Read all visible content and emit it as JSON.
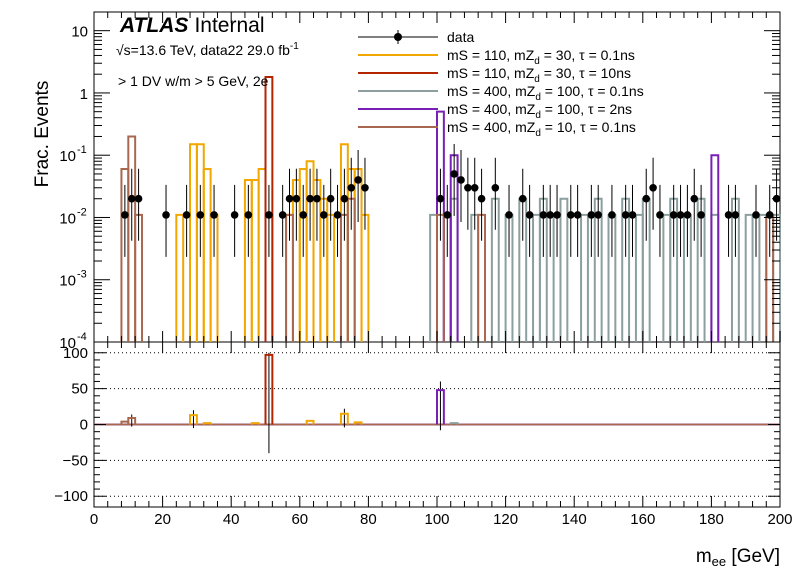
{
  "chart_data": {
    "type": "histogram",
    "experiment": "ATLAS",
    "status": "Internal",
    "sqrt_s": "√s=13.6 TeV, data22 29.0 fb",
    "lumi_exp": "-1",
    "selection": "> 1 DV w/m > 5 GeV, 2e",
    "ylabel": "Frac. Events",
    "xlabel_main": "m",
    "xlabel_sub": "ee",
    "xlabel_unit": " [GeV]",
    "x_range": [
      0,
      200
    ],
    "y_log_range": [
      -4,
      1.3
    ],
    "ratio_range": [
      -115,
      115
    ],
    "x_ticks": [
      "0",
      "20",
      "40",
      "60",
      "80",
      "100",
      "120",
      "140",
      "160",
      "180",
      "200"
    ],
    "y_ticks": [
      {
        "v": 10,
        "label": "10"
      },
      {
        "v": 1,
        "label": "1"
      },
      {
        "v": 0.1,
        "label": "10",
        "exp": "-1"
      },
      {
        "v": 0.01,
        "label": "10",
        "exp": "-2"
      },
      {
        "v": 0.001,
        "label": "10",
        "exp": "-3"
      },
      {
        "v": 0.0001,
        "label": "10",
        "exp": "-4"
      }
    ],
    "ratio_ticks": [
      "100",
      "50",
      "0",
      "−50",
      "−100"
    ],
    "legend": [
      {
        "key": "data",
        "text": "data",
        "sub": "",
        "text2": "",
        "color": "#000000",
        "marker": true
      },
      {
        "key": "s1",
        "text": "mS = 110, mZ",
        "sub": "d",
        "text2": " = 30, τ = 0.1ns",
        "color": "#f2a600"
      },
      {
        "key": "s2",
        "text": "mS = 110, mZ",
        "sub": "d",
        "text2": " = 30, τ = 10ns",
        "color": "#b32400"
      },
      {
        "key": "s3",
        "text": "mS = 400, mZ",
        "sub": "d",
        "text2": " = 100, τ = 0.1ns",
        "color": "#8c9e9e"
      },
      {
        "key": "s4",
        "text": "mS = 400, mZ",
        "sub": "d",
        "text2": " = 100, τ = 2ns",
        "color": "#7a1fb5"
      },
      {
        "key": "s5",
        "text": "mS = 400, mZ",
        "sub": "d",
        "text2": " = 10, τ = 0.1ns",
        "color": "#a8684f"
      }
    ],
    "data_points": [
      {
        "x": 9,
        "y": 0.011
      },
      {
        "x": 11,
        "y": 0.02
      },
      {
        "x": 13,
        "y": 0.02
      },
      {
        "x": 21,
        "y": 0.011
      },
      {
        "x": 27,
        "y": 0.011
      },
      {
        "x": 31,
        "y": 0.011
      },
      {
        "x": 35,
        "y": 0.011
      },
      {
        "x": 41,
        "y": 0.011
      },
      {
        "x": 45,
        "y": 0.011
      },
      {
        "x": 51,
        "y": 0.011
      },
      {
        "x": 55,
        "y": 0.011
      },
      {
        "x": 57,
        "y": 0.02
      },
      {
        "x": 59,
        "y": 0.02
      },
      {
        "x": 61,
        "y": 0.011
      },
      {
        "x": 63,
        "y": 0.02
      },
      {
        "x": 65,
        "y": 0.02
      },
      {
        "x": 67,
        "y": 0.011
      },
      {
        "x": 69,
        "y": 0.02
      },
      {
        "x": 71,
        "y": 0.011
      },
      {
        "x": 73,
        "y": 0.02
      },
      {
        "x": 75,
        "y": 0.03
      },
      {
        "x": 77,
        "y": 0.04
      },
      {
        "x": 79,
        "y": 0.03
      },
      {
        "x": 101,
        "y": 0.02
      },
      {
        "x": 103,
        "y": 0.011
      },
      {
        "x": 105,
        "y": 0.05
      },
      {
        "x": 107,
        "y": 0.04
      },
      {
        "x": 109,
        "y": 0.03
      },
      {
        "x": 111,
        "y": 0.03
      },
      {
        "x": 113,
        "y": 0.02
      },
      {
        "x": 117,
        "y": 0.03
      },
      {
        "x": 121,
        "y": 0.011
      },
      {
        "x": 125,
        "y": 0.02
      },
      {
        "x": 127,
        "y": 0.011
      },
      {
        "x": 131,
        "y": 0.011
      },
      {
        "x": 133,
        "y": 0.011
      },
      {
        "x": 135,
        "y": 0.011
      },
      {
        "x": 139,
        "y": 0.011
      },
      {
        "x": 141,
        "y": 0.011
      },
      {
        "x": 145,
        "y": 0.011
      },
      {
        "x": 147,
        "y": 0.011
      },
      {
        "x": 151,
        "y": 0.011
      },
      {
        "x": 155,
        "y": 0.011
      },
      {
        "x": 157,
        "y": 0.011
      },
      {
        "x": 161,
        "y": 0.02
      },
      {
        "x": 163,
        "y": 0.03
      },
      {
        "x": 165,
        "y": 0.011
      },
      {
        "x": 169,
        "y": 0.011
      },
      {
        "x": 171,
        "y": 0.011
      },
      {
        "x": 173,
        "y": 0.011
      },
      {
        "x": 175,
        "y": 0.02
      },
      {
        "x": 177,
        "y": 0.011
      },
      {
        "x": 185,
        "y": 0.011
      },
      {
        "x": 187,
        "y": 0.011
      },
      {
        "x": 193,
        "y": 0.011
      },
      {
        "x": 197,
        "y": 0.011
      },
      {
        "x": 199,
        "y": 0.02
      }
    ],
    "signals": [
      {
        "key": "s1",
        "color": "#f2a600",
        "bins": [
          [
            24,
            26,
            0.011
          ],
          [
            28,
            30,
            0.15
          ],
          [
            30,
            32,
            0.15
          ],
          [
            32,
            34,
            0.06
          ],
          [
            34,
            36,
            0.011
          ],
          [
            44,
            46,
            0.04
          ],
          [
            46,
            48,
            0.04
          ],
          [
            48,
            50,
            0.06
          ],
          [
            50,
            52,
            0.011
          ],
          [
            56,
            58,
            0.011
          ],
          [
            58,
            60,
            0.04
          ],
          [
            60,
            62,
            0.06
          ],
          [
            62,
            64,
            0.08
          ],
          [
            64,
            66,
            0.04
          ],
          [
            66,
            68,
            0.02
          ],
          [
            68,
            70,
            0.011
          ],
          [
            72,
            74,
            0.15
          ],
          [
            74,
            76,
            0.06
          ],
          [
            76,
            78,
            0.06
          ],
          [
            78,
            80,
            0.011
          ]
        ]
      },
      {
        "key": "s2",
        "color": "#b32400",
        "bins": [
          [
            50,
            52,
            1.8
          ]
        ]
      },
      {
        "key": "s3",
        "color": "#8c9e9e",
        "bins": [
          [
            98,
            100,
            0.011
          ],
          [
            104,
            106,
            0.02
          ],
          [
            110,
            112,
            0.011
          ],
          [
            116,
            118,
            0.02
          ],
          [
            120,
            122,
            0.011
          ],
          [
            124,
            126,
            0.02
          ],
          [
            128,
            130,
            0.011
          ],
          [
            130,
            132,
            0.02
          ],
          [
            134,
            136,
            0.011
          ],
          [
            136,
            138,
            0.02
          ],
          [
            142,
            144,
            0.011
          ],
          [
            146,
            148,
            0.02
          ],
          [
            150,
            152,
            0.011
          ],
          [
            154,
            156,
            0.02
          ],
          [
            158,
            160,
            0.011
          ],
          [
            160,
            162,
            0.02
          ],
          [
            166,
            168,
            0.011
          ],
          [
            168,
            170,
            0.02
          ],
          [
            172,
            174,
            0.011
          ],
          [
            176,
            178,
            0.02
          ],
          [
            180,
            182,
            0.011
          ],
          [
            186,
            188,
            0.02
          ],
          [
            190,
            192,
            0.011
          ],
          [
            194,
            196,
            0.011
          ],
          [
            198,
            200,
            0.011
          ]
        ]
      },
      {
        "key": "s4",
        "color": "#7a1fb5",
        "bins": [
          [
            100,
            102,
            0.5
          ],
          [
            102,
            104,
            0.011
          ],
          [
            104,
            106,
            0.1
          ],
          [
            180,
            182,
            0.1
          ]
        ]
      },
      {
        "key": "s5",
        "color": "#a8684f",
        "bins": [
          [
            8,
            10,
            0.06
          ],
          [
            10,
            12,
            0.2
          ],
          [
            12,
            14,
            0.011
          ],
          [
            56,
            58,
            0.011
          ],
          [
            72,
            74,
            0.011
          ],
          [
            74,
            76,
            0.02
          ],
          [
            100,
            102,
            0.011
          ],
          [
            112,
            114,
            0.011
          ],
          [
            196,
            198,
            0.011
          ]
        ]
      }
    ],
    "ratio_spikes": [
      {
        "key": "s2",
        "x": 51,
        "y": 97
      },
      {
        "key": "s4",
        "x": 101,
        "y": 48
      },
      {
        "key": "s1",
        "x": 29,
        "y": 13
      },
      {
        "key": "s1",
        "x": 73,
        "y": 15
      },
      {
        "key": "s1",
        "x": 63,
        "y": 5
      },
      {
        "key": "s5",
        "x": 11,
        "y": 9
      },
      {
        "key": "s5",
        "x": 9,
        "y": 4
      },
      {
        "key": "s1",
        "x": 47,
        "y": 2
      },
      {
        "key": "s3",
        "x": 105,
        "y": 2
      },
      {
        "key": "s1",
        "x": 33,
        "y": 2
      },
      {
        "key": "s1",
        "x": 77,
        "y": 3
      }
    ],
    "ratio_errors": [
      {
        "x": 51,
        "lo": -40,
        "hi": 100
      },
      {
        "x": 101,
        "lo": -8,
        "hi": 60
      },
      {
        "x": 29,
        "lo": -5,
        "hi": 20
      },
      {
        "x": 73,
        "lo": -4,
        "hi": 22
      },
      {
        "x": 11,
        "lo": -3,
        "hi": 14
      }
    ]
  }
}
